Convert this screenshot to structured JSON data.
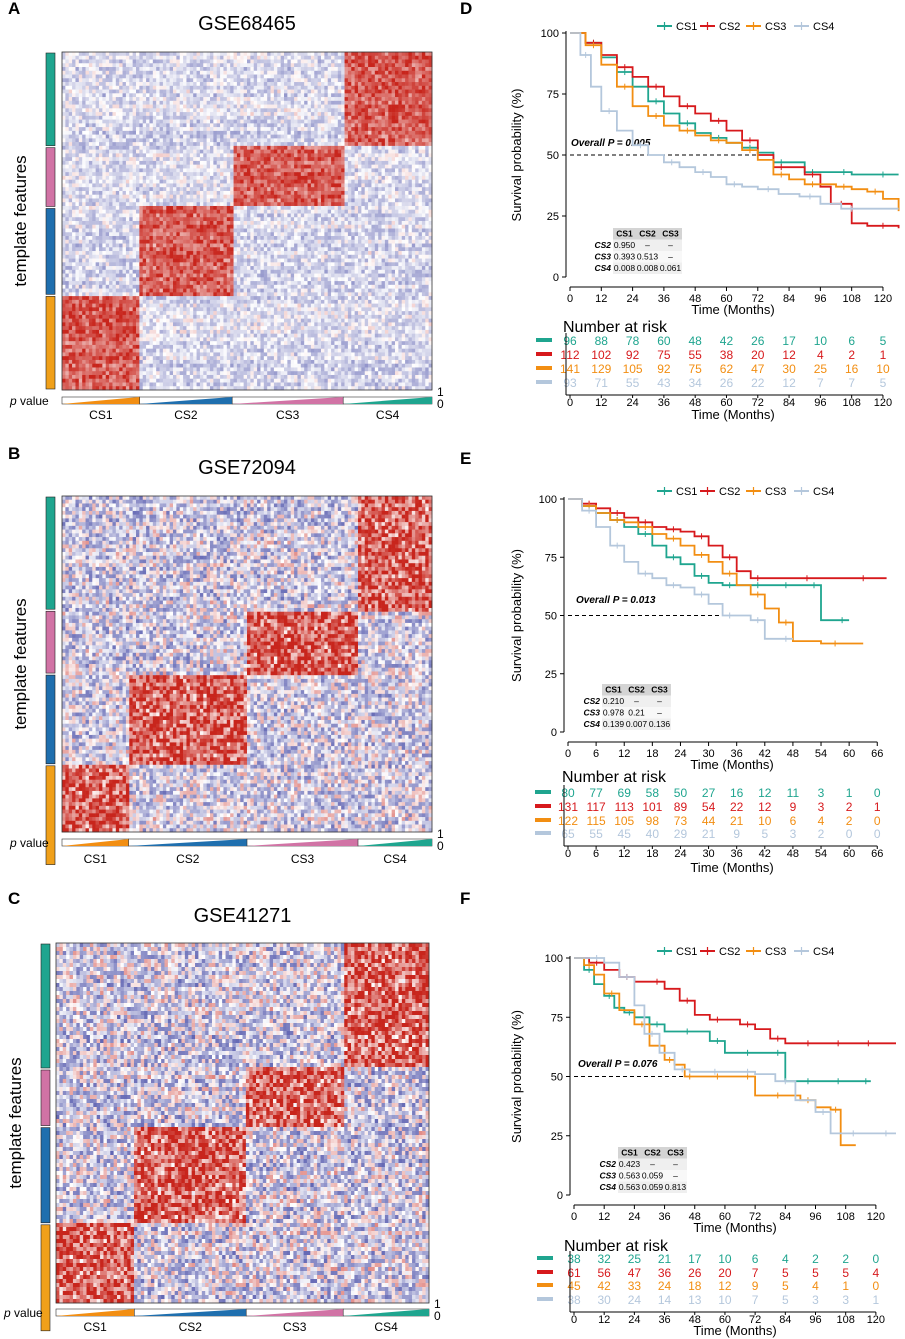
{
  "colors": {
    "CS1": "#1fa58f",
    "CS2": "#d7191c",
    "CS3": "#f28e12",
    "CS4": "#b4c7dc",
    "heat_red": "#c8251c",
    "heat_blue": "#3a3fa0",
    "sidebar": [
      "#1fa58f",
      "#d173a5",
      "#1f6fae",
      "#f0a01a"
    ]
  },
  "common": {
    "template_features_label": "template features",
    "p_value_label_p": "p",
    "p_value_label_rest": "value",
    "p_scale_top": "1",
    "p_scale_bottom": "0",
    "y_axis_label": "Survival probability (%)",
    "x_axis_label": "Time (Months)",
    "risk_title": "Number at risk",
    "legend": [
      "CS1",
      "CS2",
      "CS3",
      "CS4"
    ],
    "ptable_header": [
      "CS1",
      "CS2",
      "CS3"
    ],
    "ptable_rows": [
      "CS2",
      "CS3",
      "CS4"
    ]
  },
  "heatmaps": [
    {
      "panel": "A",
      "title": "GSE68465",
      "clusters": [
        "CS1",
        "CS2",
        "CS3",
        "CS4"
      ],
      "cluster_fractions": [
        0.21,
        0.25,
        0.3,
        0.24
      ],
      "feature_fractions": [
        0.28,
        0.18,
        0.26,
        0.28
      ],
      "noise": 0.28
    },
    {
      "panel": "B",
      "title": "GSE72094",
      "clusters": [
        "CS1",
        "CS2",
        "CS3",
        "CS4"
      ],
      "cluster_fractions": [
        0.18,
        0.32,
        0.3,
        0.2
      ],
      "feature_fractions": [
        0.34,
        0.19,
        0.27,
        0.3
      ],
      "noise": 0.55
    },
    {
      "panel": "C",
      "title": "GSE41271",
      "clusters": [
        "CS1",
        "CS2",
        "CS3",
        "CS4"
      ],
      "cluster_fractions": [
        0.21,
        0.3,
        0.26,
        0.23
      ],
      "feature_fractions": [
        0.35,
        0.16,
        0.27,
        0.3
      ],
      "noise": 0.6
    }
  ],
  "chart_data": [
    {
      "panel": "D",
      "type": "line",
      "title": "",
      "xlabel": "Time (Months)",
      "ylabel": "Survival probability (%)",
      "xlim": [
        0,
        125
      ],
      "ylim": [
        0,
        100
      ],
      "xticks": [
        0,
        12,
        24,
        36,
        48,
        60,
        72,
        84,
        96,
        108,
        120
      ],
      "yticks": [
        0,
        25,
        50,
        75,
        100
      ],
      "overall_p": "Overall P = 0.005",
      "pairwise_p": [
        [
          "0.950",
          "–",
          "–"
        ],
        [
          "0.393",
          "0.513",
          "–"
        ],
        [
          "0.008",
          "0.008",
          "0.061"
        ]
      ],
      "series": [
        {
          "name": "CS1",
          "x": [
            0,
            6,
            12,
            18,
            24,
            30,
            36,
            42,
            48,
            54,
            60,
            66,
            72,
            78,
            84,
            90,
            96,
            102,
            108,
            114,
            126
          ],
          "y": [
            100,
            96,
            90,
            84,
            78,
            72,
            67,
            63,
            59,
            57,
            55,
            53,
            51,
            47,
            47,
            43,
            43,
            43,
            42,
            42,
            42
          ]
        },
        {
          "name": "CS2",
          "x": [
            0,
            6,
            12,
            18,
            24,
            30,
            36,
            42,
            48,
            54,
            60,
            66,
            72,
            78,
            84,
            90,
            96,
            100,
            108,
            114,
            126
          ],
          "y": [
            100,
            96,
            91,
            86,
            82,
            78,
            74,
            70,
            67,
            64,
            60,
            56,
            50,
            45,
            45,
            42,
            37,
            30,
            22,
            21,
            20
          ]
        },
        {
          "name": "CS3",
          "x": [
            0,
            6,
            12,
            18,
            24,
            30,
            36,
            42,
            48,
            54,
            60,
            66,
            72,
            78,
            84,
            90,
            96,
            102,
            108,
            114,
            120,
            126
          ],
          "y": [
            100,
            95,
            87,
            78,
            70,
            66,
            62,
            60,
            58,
            56,
            55,
            52,
            48,
            42,
            40,
            38,
            38,
            37,
            36,
            35,
            32,
            27
          ]
        },
        {
          "name": "CS4",
          "x": [
            0,
            4,
            8,
            12,
            18,
            24,
            30,
            36,
            42,
            48,
            54,
            60,
            66,
            72,
            80,
            88,
            96,
            104,
            112,
            126
          ],
          "y": [
            100,
            91,
            78,
            68,
            60,
            54,
            50,
            47,
            45,
            43,
            41,
            38,
            37,
            36,
            34,
            33,
            30,
            28,
            28,
            28
          ]
        }
      ],
      "risk_times": [
        0,
        12,
        24,
        36,
        48,
        60,
        72,
        84,
        96,
        108,
        120
      ],
      "risk": [
        [
          96,
          88,
          78,
          60,
          48,
          42,
          26,
          17,
          10,
          6,
          5
        ],
        [
          112,
          102,
          92,
          75,
          55,
          38,
          20,
          12,
          4,
          2,
          1
        ],
        [
          141,
          129,
          105,
          92,
          75,
          62,
          47,
          30,
          25,
          16,
          10
        ],
        [
          93,
          71,
          55,
          43,
          34,
          26,
          22,
          12,
          7,
          7,
          5
        ]
      ]
    },
    {
      "panel": "E",
      "type": "line",
      "title": "",
      "xlabel": "Time (Months)",
      "ylabel": "Survival probability (%)",
      "xlim": [
        0,
        70
      ],
      "ylim": [
        0,
        100
      ],
      "xticks": [
        0,
        6,
        12,
        18,
        24,
        30,
        36,
        42,
        48,
        54,
        60,
        66
      ],
      "yticks": [
        0,
        25,
        50,
        75,
        100
      ],
      "overall_p": "Overall P = 0.013",
      "pairwise_p": [
        [
          "0.210",
          "–",
          "–"
        ],
        [
          "0.978",
          "0.21",
          "–"
        ],
        [
          "0.139",
          "0.007",
          "0.136"
        ]
      ],
      "series": [
        {
          "name": "CS1",
          "x": [
            0,
            3,
            6,
            9,
            12,
            15,
            18,
            21,
            24,
            27,
            30,
            33,
            36,
            39,
            42,
            45,
            48,
            51,
            54,
            57,
            60
          ],
          "y": [
            100,
            97,
            94,
            91,
            88,
            85,
            80,
            75,
            72,
            67,
            64,
            63,
            63,
            63,
            63,
            63,
            63,
            63,
            48,
            48,
            48
          ]
        },
        {
          "name": "CS2",
          "x": [
            0,
            3,
            6,
            9,
            12,
            15,
            18,
            21,
            24,
            27,
            30,
            33,
            36,
            39,
            42,
            48,
            54,
            60,
            66,
            68
          ],
          "y": [
            100,
            98,
            96,
            94,
            92,
            90,
            88,
            87,
            86,
            84,
            80,
            75,
            69,
            66,
            66,
            66,
            66,
            66,
            66,
            66
          ]
        },
        {
          "name": "CS3",
          "x": [
            0,
            3,
            6,
            9,
            12,
            15,
            18,
            21,
            24,
            27,
            30,
            33,
            36,
            39,
            42,
            45,
            48,
            54,
            60,
            63
          ],
          "y": [
            100,
            97,
            94,
            91,
            90,
            88,
            85,
            83,
            80,
            76,
            73,
            68,
            63,
            59,
            53,
            47,
            39,
            38,
            38,
            38
          ]
        },
        {
          "name": "CS4",
          "x": [
            0,
            3,
            6,
            9,
            12,
            15,
            18,
            21,
            24,
            27,
            30,
            33,
            36,
            39,
            42,
            45,
            48
          ],
          "y": [
            100,
            95,
            88,
            80,
            73,
            68,
            66,
            63,
            62,
            59,
            55,
            50,
            50,
            48,
            40,
            40,
            40
          ]
        }
      ],
      "risk_times": [
        0,
        6,
        12,
        18,
        24,
        30,
        36,
        42,
        48,
        54,
        60,
        66
      ],
      "risk": [
        [
          80,
          77,
          69,
          58,
          50,
          27,
          16,
          12,
          11,
          3,
          1,
          0
        ],
        [
          131,
          117,
          113,
          101,
          89,
          54,
          22,
          12,
          9,
          3,
          2,
          1
        ],
        [
          122,
          115,
          105,
          98,
          73,
          44,
          21,
          10,
          6,
          4,
          2,
          0
        ],
        [
          65,
          55,
          45,
          40,
          29,
          21,
          9,
          5,
          3,
          2,
          0,
          0
        ]
      ]
    },
    {
      "panel": "F",
      "type": "line",
      "title": "",
      "xlabel": "Time (Months)",
      "ylabel": "Survival probability (%)",
      "xlim": [
        0,
        128
      ],
      "ylim": [
        0,
        100
      ],
      "xticks": [
        0,
        12,
        24,
        36,
        48,
        60,
        72,
        84,
        96,
        108,
        120
      ],
      "yticks": [
        0,
        25,
        50,
        75,
        100
      ],
      "overall_p": "Overall P = 0.076",
      "pairwise_p": [
        [
          "0.423",
          "–",
          "–"
        ],
        [
          "0.563",
          "0.059",
          "–"
        ],
        [
          "0.563",
          "0.059",
          "0.813"
        ]
      ],
      "series": [
        {
          "name": "CS1",
          "x": [
            0,
            4,
            8,
            12,
            16,
            20,
            24,
            30,
            36,
            42,
            48,
            54,
            60,
            66,
            72,
            78,
            84,
            90,
            96,
            102,
            108,
            114,
            118
          ],
          "y": [
            100,
            95,
            89,
            84,
            79,
            77,
            75,
            72,
            69,
            69,
            69,
            65,
            60,
            60,
            60,
            60,
            48,
            48,
            48,
            48,
            48,
            48,
            48
          ]
        },
        {
          "name": "CS2",
          "x": [
            0,
            6,
            12,
            18,
            24,
            30,
            36,
            42,
            48,
            54,
            60,
            66,
            72,
            78,
            84,
            90,
            96,
            102,
            108,
            114,
            120,
            128
          ],
          "y": [
            100,
            98,
            95,
            92,
            90,
            90,
            87,
            82,
            76,
            74,
            74,
            72,
            70,
            66,
            64,
            64,
            64,
            64,
            64,
            64,
            64,
            64
          ]
        },
        {
          "name": "CS3",
          "x": [
            0,
            4,
            8,
            12,
            18,
            24,
            30,
            36,
            40,
            44,
            48,
            54,
            60,
            66,
            72,
            78,
            84,
            90,
            96,
            102,
            106,
            112
          ],
          "y": [
            100,
            97,
            93,
            85,
            78,
            72,
            63,
            57,
            55,
            50,
            50,
            50,
            50,
            50,
            42,
            42,
            42,
            40,
            37,
            36,
            21,
            21
          ]
        },
        {
          "name": "CS4",
          "x": [
            0,
            6,
            12,
            18,
            24,
            28,
            34,
            40,
            46,
            52,
            60,
            66,
            72,
            80,
            88,
            96,
            102,
            108,
            114,
            120,
            128
          ],
          "y": [
            100,
            100,
            98,
            92,
            80,
            68,
            60,
            53,
            52,
            52,
            52,
            52,
            51,
            48,
            40,
            35,
            26,
            26,
            26,
            26,
            26
          ]
        }
      ],
      "risk_times": [
        0,
        12,
        24,
        36,
        48,
        60,
        72,
        84,
        96,
        108,
        120
      ],
      "risk": [
        [
          38,
          32,
          25,
          21,
          17,
          10,
          6,
          4,
          2,
          2,
          0
        ],
        [
          61,
          56,
          47,
          36,
          26,
          20,
          7,
          5,
          5,
          5,
          4
        ],
        [
          45,
          42,
          33,
          24,
          18,
          12,
          9,
          5,
          4,
          1,
          0
        ],
        [
          38,
          30,
          24,
          14,
          13,
          10,
          7,
          5,
          3,
          3,
          1
        ]
      ]
    }
  ]
}
